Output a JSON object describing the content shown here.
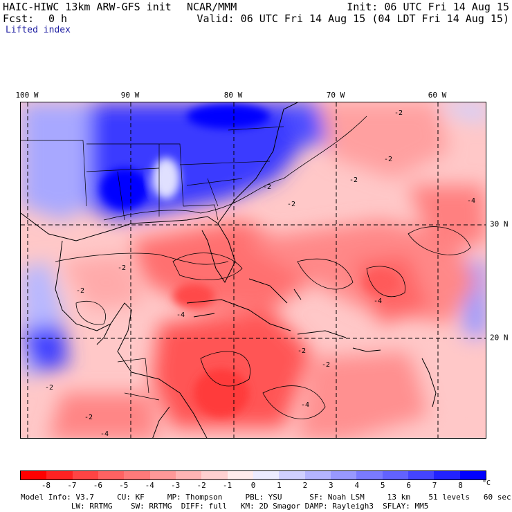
{
  "header": {
    "model_title": "HAIC-HIWC 13km ARW-GFS init",
    "org": "NCAR/MMM",
    "init": "Init: 06 UTC Fri 14 Aug 15",
    "fcst_label": "Fcst:",
    "fcst_value": "0 h",
    "valid": "Valid: 06 UTC Fri 14 Aug 15 (04 LDT Fri 14 Aug 15)",
    "field": "Lifted index"
  },
  "map": {
    "lon_labels": [
      "100 W",
      "90 W",
      "80 W",
      "70 W",
      "60 W"
    ],
    "lat_labels": [
      "30 N",
      "20 N"
    ],
    "contour_labels": [
      "-2",
      "-4"
    ]
  },
  "legend": {
    "unit": "°C",
    "ticks": [
      "-8",
      "-7",
      "-6",
      "-5",
      "-4",
      "-3",
      "-2",
      "-1",
      "0",
      "1",
      "2",
      "3",
      "4",
      "5",
      "6",
      "7",
      "8"
    ],
    "colors": [
      "#ff0000",
      "#ff2222",
      "#ff4444",
      "#ff6262",
      "#ff7a7a",
      "#ff9898",
      "#ffb4b4",
      "#ffd0d0",
      "#ffecec",
      "#ececff",
      "#d0d0ff",
      "#b4b4ff",
      "#9898ff",
      "#7a7aff",
      "#6262ff",
      "#4444ff",
      "#2222ff",
      "#0000ff"
    ]
  },
  "model_info": {
    "line1": "Model Info: V3.7     CU: KF     MP: Thompson     PBL: YSU      SF: Noah LSM     13 km    51 levels   60 sec",
    "line2": "           LW: RRTMG    SW: RRTMG  DIFF: full   KM: 2D Smagor DAMP: Rayleigh3  SFLAY: MM5"
  }
}
